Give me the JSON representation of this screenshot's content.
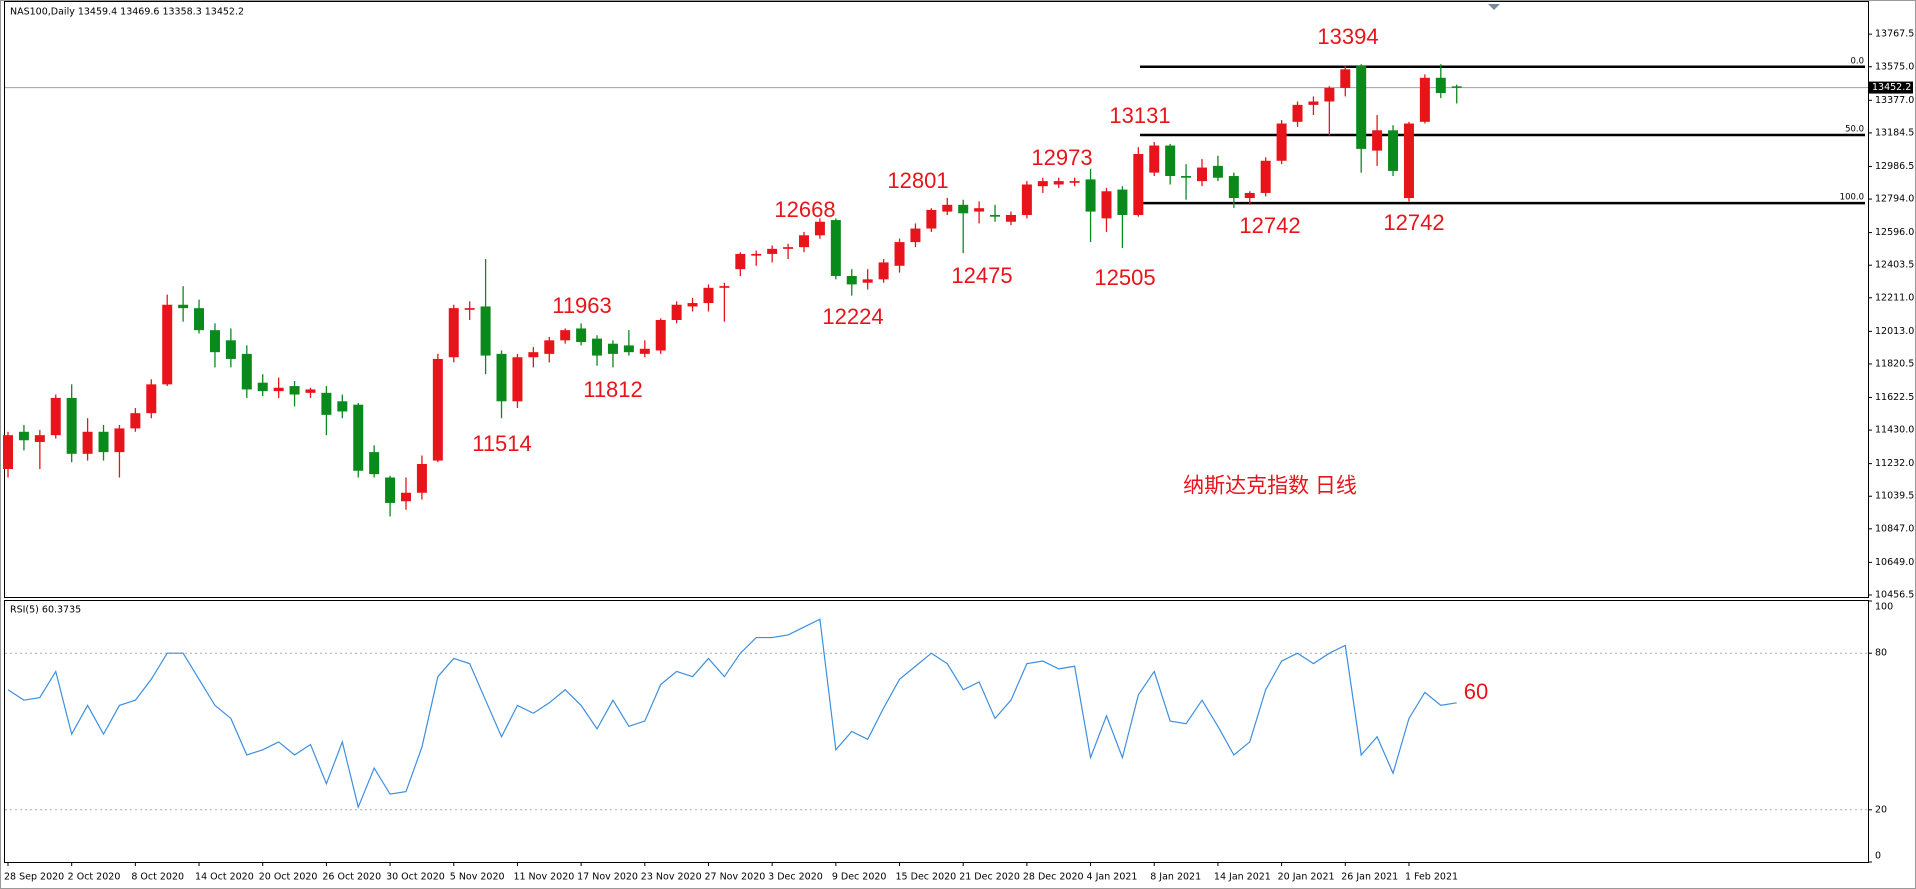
{
  "chart_data": [
    {
      "type": "candlestick",
      "title": "NAS100,Daily  13459.4 13469.6 13358.3 13452.2",
      "up_color": "#e8141b",
      "down_color": "#0b8a1c",
      "categories": [
        "28 Sep 2020",
        null,
        null,
        null,
        "2 Oct 2020",
        null,
        null,
        null,
        "8 Oct 2020",
        null,
        null,
        null,
        "14 Oct 2020",
        null,
        null,
        null,
        "20 Oct 2020",
        null,
        null,
        null,
        "26 Oct 2020",
        null,
        null,
        null,
        "30 Oct 2020",
        null,
        null,
        null,
        "5 Nov 2020",
        null,
        null,
        null,
        "11 Nov 2020",
        null,
        null,
        null,
        "17 Nov 2020",
        null,
        null,
        null,
        "23 Nov 2020",
        null,
        null,
        null,
        "27 Nov 2020",
        null,
        null,
        null,
        "3 Dec 2020",
        null,
        null,
        null,
        "9 Dec 2020",
        null,
        null,
        null,
        "15 Dec 2020",
        null,
        null,
        null,
        "21 Dec 2020",
        null,
        null,
        null,
        "28 Dec 2020",
        null,
        null,
        null,
        "4 Jan 2021",
        null,
        null,
        null,
        "8 Jan 2021",
        null,
        null,
        null,
        "14 Jan 2021",
        null,
        null,
        null,
        "20 Jan 2021",
        null,
        null,
        null,
        "26 Jan 2021",
        null,
        null,
        null,
        "1 Feb 2021",
        null,
        null,
        null
      ],
      "open": [
        11200,
        11420,
        11360,
        11400,
        11620,
        11290,
        11420,
        11300,
        11440,
        11530,
        11700,
        12170,
        12150,
        12020,
        11960,
        11880,
        11710,
        11660,
        11690,
        11650,
        11650,
        11600,
        11580,
        11300,
        11150,
        11010,
        11060,
        11250,
        11860,
        12140,
        12160,
        11880,
        11600,
        11860,
        11880,
        11960,
        12030,
        11970,
        11940,
        11930,
        11880,
        11900,
        12080,
        12160,
        12180,
        12270,
        12380,
        12460,
        12470,
        12500,
        12510,
        12580,
        12670,
        12340,
        12300,
        12320,
        12400,
        12540,
        12620,
        12720,
        12760,
        12720,
        12700,
        12660,
        12700,
        12870,
        12880,
        12890,
        12910,
        12680,
        12850,
        12700,
        12950,
        13110,
        12930,
        12900,
        12990,
        12930,
        12800,
        12830,
        13020,
        13250,
        13350,
        13370,
        13450,
        13580,
        13080,
        13200,
        12800,
        13250,
        13510,
        13459.4
      ],
      "high": [
        11420,
        11460,
        11430,
        11640,
        11700,
        11500,
        11460,
        11460,
        11560,
        11730,
        12230,
        12280,
        12200,
        12060,
        12030,
        11930,
        11760,
        11740,
        11720,
        11680,
        11690,
        11640,
        11590,
        11340,
        11160,
        11150,
        11280,
        11880,
        12170,
        12190,
        12440,
        11900,
        11880,
        11920,
        11980,
        12030,
        12060,
        11990,
        11960,
        12020,
        11960,
        12090,
        12190,
        12210,
        12290,
        12300,
        12480,
        12490,
        12520,
        12530,
        12600,
        12680,
        12680,
        12380,
        12380,
        12440,
        12560,
        12650,
        12740,
        12801,
        12790,
        12780,
        12760,
        12720,
        12900,
        12920,
        12920,
        12920,
        12973,
        12860,
        12870,
        13100,
        13131,
        13120,
        13000,
        13030,
        13050,
        12950,
        12840,
        13040,
        13260,
        13370,
        13400,
        13460,
        13580,
        13590,
        13290,
        13230,
        13250,
        13530,
        13590,
        13469.6
      ],
      "low": [
        11150,
        11310,
        11200,
        11380,
        11240,
        11250,
        11250,
        11150,
        11420,
        11500,
        11690,
        12070,
        12000,
        11800,
        11800,
        11620,
        11630,
        11620,
        11570,
        11620,
        11400,
        11500,
        11150,
        11150,
        10920,
        10960,
        11020,
        11240,
        11830,
        12080,
        11760,
        11500,
        11560,
        11800,
        11830,
        11940,
        11930,
        11810,
        11800,
        11870,
        11860,
        11880,
        12060,
        12130,
        12130,
        12070,
        12340,
        12400,
        12420,
        12440,
        12480,
        12560,
        12320,
        12224,
        12260,
        12300,
        12360,
        12510,
        12600,
        12700,
        12475,
        12650,
        12660,
        12640,
        12680,
        12830,
        12860,
        12870,
        12540,
        12600,
        12505,
        12690,
        12930,
        12880,
        12790,
        12870,
        12900,
        12742,
        12760,
        12810,
        13000,
        13220,
        13290,
        13170,
        13400,
        12950,
        12990,
        12930,
        12780,
        13240,
        13390,
        13358.3
      ],
      "close": [
        11400,
        11370,
        11400,
        11620,
        11290,
        11420,
        11300,
        11440,
        11530,
        11700,
        12170,
        12150,
        12020,
        11890,
        11850,
        11670,
        11660,
        11680,
        11640,
        11670,
        11520,
        11540,
        11190,
        11170,
        11000,
        11060,
        11230,
        11850,
        12150,
        12150,
        11870,
        11600,
        11860,
        11890,
        11960,
        12020,
        11950,
        11870,
        11880,
        11890,
        11910,
        12080,
        12170,
        12180,
        12270,
        12280,
        12470,
        12470,
        12500,
        12510,
        12580,
        12660,
        12340,
        12290,
        12320,
        12420,
        12540,
        12620,
        12730,
        12760,
        12710,
        12740,
        12690,
        12700,
        12880,
        12900,
        12900,
        12900,
        12720,
        12840,
        12700,
        13060,
        13110,
        12930,
        12920,
        12980,
        12920,
        12800,
        12830,
        13020,
        13240,
        13350,
        13370,
        13450,
        13560,
        13090,
        13200,
        12960,
        13240,
        13510,
        13420,
        13452.2
      ],
      "ylim": [
        10444.6,
        13957.4
      ],
      "yticks": [
        13767.5,
        {
          "value": 13575,
          "label": "13575.0"
        },
        {
          "value": 13377,
          "label": "13377.0"
        },
        13184.5,
        12986.5,
        {
          "value": 12794,
          "label": "12794.0"
        },
        {
          "value": 12596,
          "label": "12596.0"
        },
        12403.5,
        {
          "value": 12211,
          "label": "12211.0"
        },
        {
          "value": 12013,
          "label": "12013.0"
        },
        11820.5,
        11622.5,
        {
          "value": 11430,
          "label": "11430.0"
        },
        {
          "value": 11232,
          "label": "11232.0"
        },
        11039.5,
        {
          "value": 10847,
          "label": "10847.0"
        },
        {
          "value": 10649,
          "label": "10649.0"
        },
        10456.5
      ],
      "last_price": 13452.2,
      "fib_levels": [
        {
          "value": 13575,
          "label": "0.0"
        },
        {
          "value": 13172.5,
          "label": "50.0"
        },
        {
          "value": 12770,
          "label": "100.0"
        }
      ],
      "price_labels": [
        13394,
        13131,
        12973,
        12801,
        12668,
        11963,
        11812,
        11514,
        12224,
        12475,
        12505,
        12742,
        12742
      ],
      "annotation": "纳斯达克指数 日线"
    },
    {
      "type": "line",
      "title": "RSI(5) 60.3735",
      "color": "#3d8fe0",
      "values": [
        66,
        62,
        63,
        73,
        49,
        60,
        49,
        60,
        62,
        70,
        80,
        80,
        70,
        60,
        55,
        41,
        43,
        46,
        41,
        45,
        30,
        46,
        21,
        36,
        26,
        27,
        44,
        71,
        78,
        76,
        62,
        48,
        60,
        57,
        61,
        66,
        60,
        51,
        62,
        52,
        54,
        68,
        73,
        71,
        78,
        71,
        80,
        86,
        86,
        87,
        90,
        93,
        43,
        50,
        47,
        59,
        70,
        75,
        80,
        76,
        66,
        69,
        55,
        62,
        76,
        77,
        74,
        75,
        40,
        56,
        40,
        64,
        73,
        54,
        53,
        62,
        52,
        41,
        46,
        66,
        77,
        80,
        76,
        80,
        83,
        41,
        48,
        34,
        55,
        65,
        60,
        61
      ],
      "ylim": [
        0,
        100
      ],
      "yticks": [
        100,
        80,
        20,
        0
      ],
      "annotation": 60
    }
  ]
}
